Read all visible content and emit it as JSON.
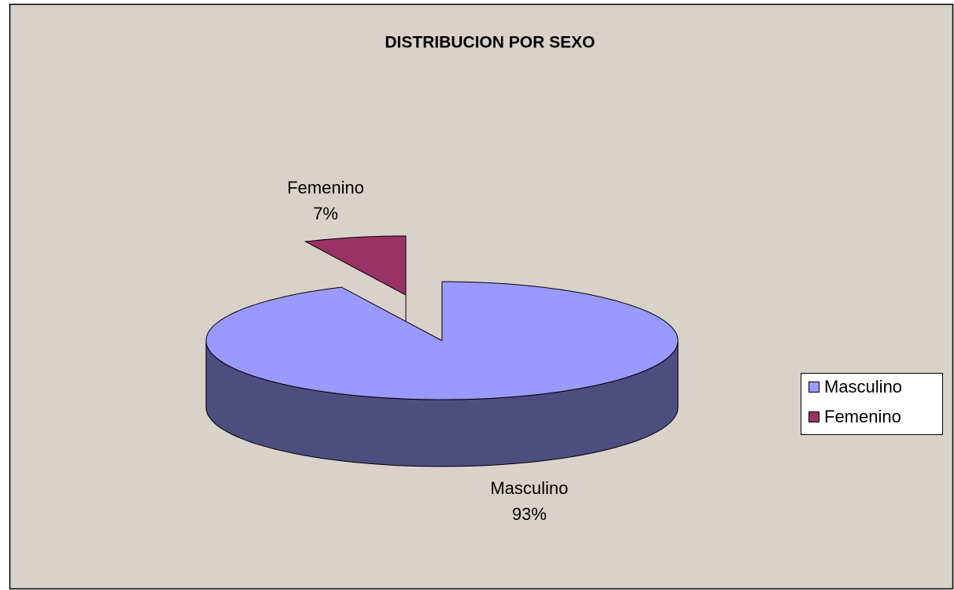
{
  "chart_data": {
    "type": "pie",
    "title": "DISTRIBUCION POR SEXO",
    "categories": [
      "Masculino",
      "Femenino"
    ],
    "values": [
      93,
      7
    ],
    "value_labels": [
      "93%",
      "7%"
    ],
    "colors": [
      "#9999ff",
      "#993366"
    ],
    "legend": "right"
  }
}
